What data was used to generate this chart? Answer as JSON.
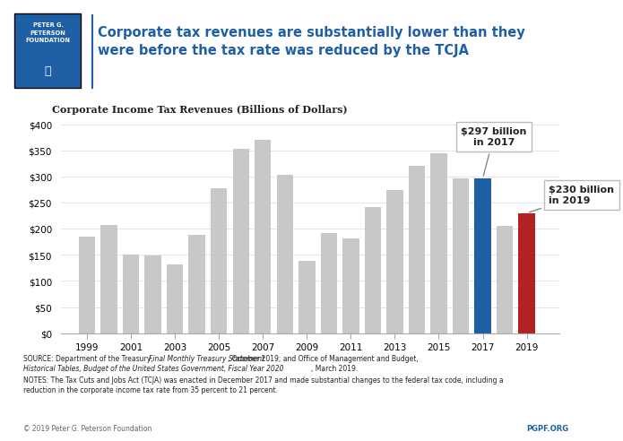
{
  "years": [
    1999,
    2000,
    2001,
    2002,
    2003,
    2004,
    2005,
    2006,
    2007,
    2008,
    2009,
    2010,
    2011,
    2012,
    2013,
    2014,
    2015,
    2016,
    2017,
    2018,
    2019
  ],
  "values": [
    185,
    207,
    151,
    148,
    132,
    189,
    278,
    354,
    370,
    304,
    138,
    191,
    181,
    242,
    274,
    321,
    344,
    297,
    297,
    205,
    230
  ],
  "bar_colors_base": "#c8c8c8",
  "bar_color_2017": "#1f5fa6",
  "bar_color_2019": "#b22222",
  "chart_title": "Corporate Income Tax Revenues (Billions of Dollars)",
  "ylim": [
    0,
    400
  ],
  "yticks": [
    0,
    50,
    100,
    150,
    200,
    250,
    300,
    350,
    400
  ],
  "annotation_2017_text": "$297 billion\nin 2017",
  "annotation_2019_text": "$230 billion\nin 2019",
  "header_title_line1": "Corporate tax revenues are substantially lower than they",
  "header_title_line2": "were before the tax rate was reduced by the TCJA",
  "pgpf_blue": "#1f5fa6",
  "pgpf_dark": "#1a3a6b",
  "background_color": "#ffffff",
  "bar_xlim": [
    1997.8,
    2020.5
  ],
  "xtick_years": [
    1999,
    2001,
    2003,
    2005,
    2007,
    2009,
    2011,
    2013,
    2015,
    2017,
    2019
  ],
  "footer_source1": "SOURCE: Department of the Treasury, ",
  "footer_source1_italic": "Final Monthly Treasury Statement",
  "footer_source2": ", October 2019; and Office of Management and Budget, ",
  "footer_source2_italic": "Historical Tables,",
  "footer_source3_line2": "Budget of the ",
  "footer_source3_italic": "United States Government, Fiscal Year 2020",
  "footer_source4": ", March 2019.",
  "footer_notes": "NOTES: The Tax Cuts and Jobs Act (TCJA) was enacted in December 2017 and made substantial changes to the federal tax code, including a\nreduction in the corporate income tax rate from 35 percent to 21 percent.",
  "footer_copyright": "© 2019 Peter G. Peterson Foundation",
  "footer_pgpf": "PGPF.ORG"
}
